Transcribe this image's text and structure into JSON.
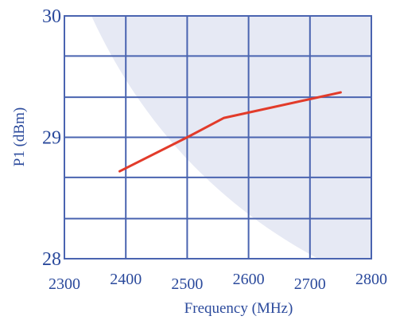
{
  "chart_data": {
    "type": "line",
    "xlabel": "Frequency (MHz)",
    "ylabel": "P1 (dBm)",
    "xlim": [
      2300,
      2800
    ],
    "ylim": [
      28,
      30
    ],
    "x_ticks": [
      "2300",
      "2400",
      "2500",
      "2600",
      "2700",
      "2800"
    ],
    "y_ticks": [
      "28",
      "29",
      "30"
    ],
    "x_grid": [
      2300,
      2400,
      2500,
      2600,
      2700,
      2800
    ],
    "y_grid": [
      28,
      28.33,
      28.67,
      29,
      29.33,
      29.67,
      30
    ],
    "grid": true,
    "series": [
      {
        "color": "#e23b2a",
        "x": [
          2390,
          2500,
          2560,
          2750
        ],
        "y": [
          28.72,
          29.0,
          29.16,
          29.37
        ]
      }
    ]
  },
  "colors": {
    "plot_bg": "#e6e9f4",
    "grid": "#4a64b0",
    "text": "#2b4a9c"
  }
}
